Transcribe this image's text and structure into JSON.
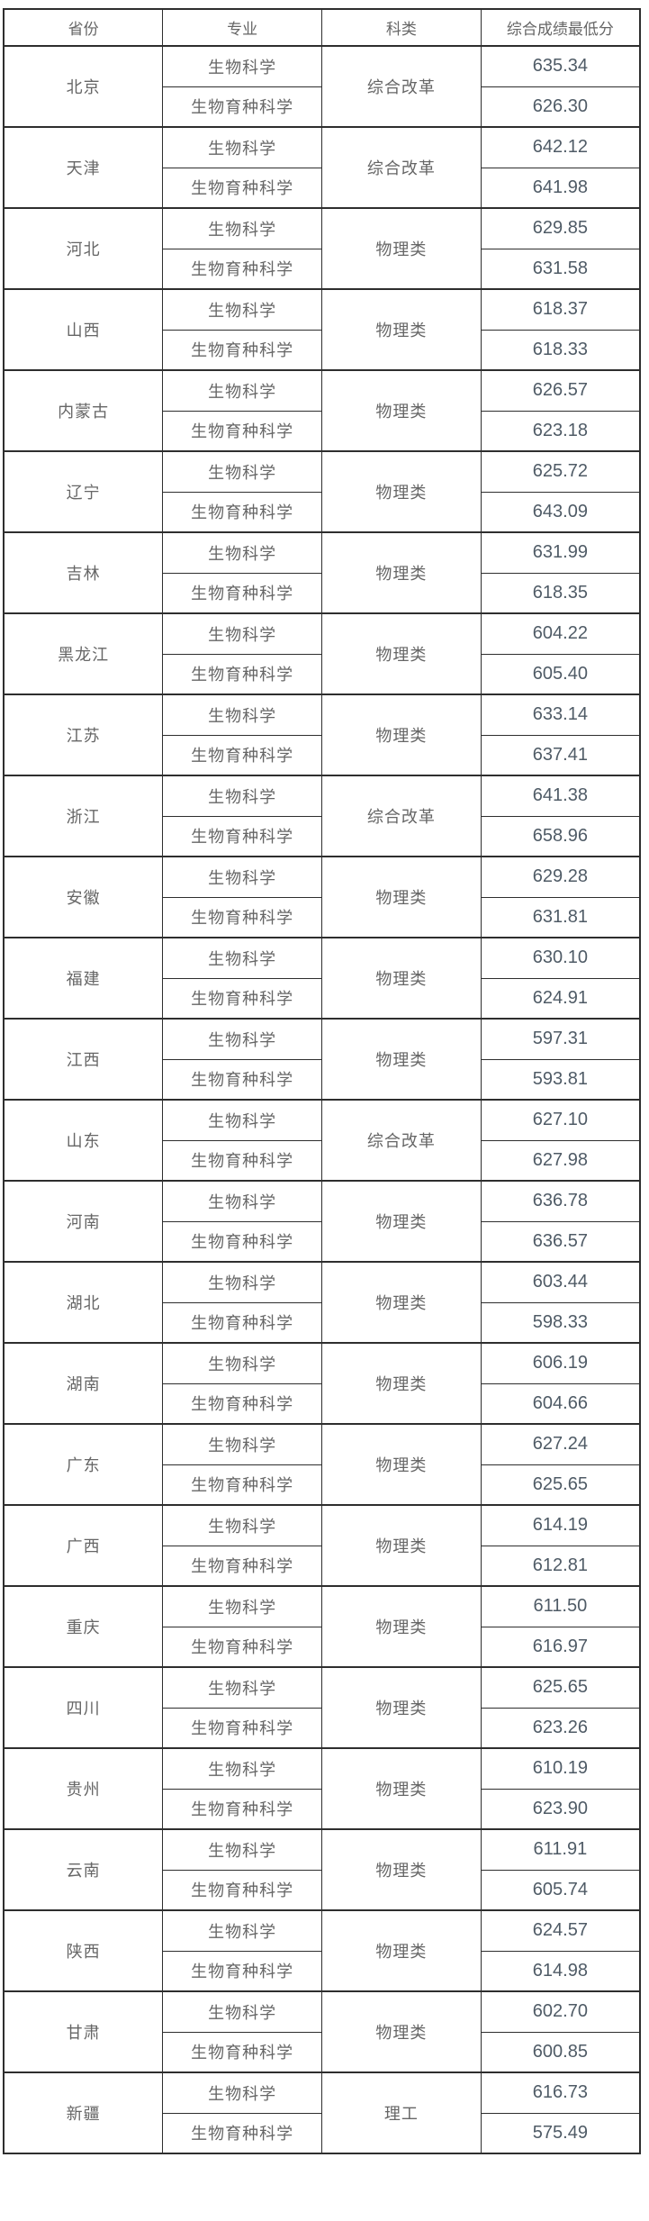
{
  "table": {
    "columns": [
      {
        "label": "省份"
      },
      {
        "label": "专业"
      },
      {
        "label": "科类"
      },
      {
        "label": "综合成绩最低分"
      }
    ],
    "rows": [
      {
        "province": "北京",
        "majors": [
          "生物科学",
          "生物育种科学"
        ],
        "category": "综合改革",
        "scores": [
          "635.34",
          "626.30"
        ]
      },
      {
        "province": "天津",
        "majors": [
          "生物科学",
          "生物育种科学"
        ],
        "category": "综合改革",
        "scores": [
          "642.12",
          "641.98"
        ]
      },
      {
        "province": "河北",
        "majors": [
          "生物科学",
          "生物育种科学"
        ],
        "category": "物理类",
        "scores": [
          "629.85",
          "631.58"
        ]
      },
      {
        "province": "山西",
        "majors": [
          "生物科学",
          "生物育种科学"
        ],
        "category": "物理类",
        "scores": [
          "618.37",
          "618.33"
        ]
      },
      {
        "province": "内蒙古",
        "majors": [
          "生物科学",
          "生物育种科学"
        ],
        "category": "物理类",
        "scores": [
          "626.57",
          "623.18"
        ]
      },
      {
        "province": "辽宁",
        "majors": [
          "生物科学",
          "生物育种科学"
        ],
        "category": "物理类",
        "scores": [
          "625.72",
          "643.09"
        ]
      },
      {
        "province": "吉林",
        "majors": [
          "生物科学",
          "生物育种科学"
        ],
        "category": "物理类",
        "scores": [
          "631.99",
          "618.35"
        ]
      },
      {
        "province": "黑龙江",
        "majors": [
          "生物科学",
          "生物育种科学"
        ],
        "category": "物理类",
        "scores": [
          "604.22",
          "605.40"
        ]
      },
      {
        "province": "江苏",
        "majors": [
          "生物科学",
          "生物育种科学"
        ],
        "category": "物理类",
        "scores": [
          "633.14",
          "637.41"
        ]
      },
      {
        "province": "浙江",
        "majors": [
          "生物科学",
          "生物育种科学"
        ],
        "category": "综合改革",
        "scores": [
          "641.38",
          "658.96"
        ]
      },
      {
        "province": "安徽",
        "majors": [
          "生物科学",
          "生物育种科学"
        ],
        "category": "物理类",
        "scores": [
          "629.28",
          "631.81"
        ]
      },
      {
        "province": "福建",
        "majors": [
          "生物科学",
          "生物育种科学"
        ],
        "category": "物理类",
        "scores": [
          "630.10",
          "624.91"
        ]
      },
      {
        "province": "江西",
        "majors": [
          "生物科学",
          "生物育种科学"
        ],
        "category": "物理类",
        "scores": [
          "597.31",
          "593.81"
        ]
      },
      {
        "province": "山东",
        "majors": [
          "生物科学",
          "生物育种科学"
        ],
        "category": "综合改革",
        "scores": [
          "627.10",
          "627.98"
        ]
      },
      {
        "province": "河南",
        "majors": [
          "生物科学",
          "生物育种科学"
        ],
        "category": "物理类",
        "scores": [
          "636.78",
          "636.57"
        ]
      },
      {
        "province": "湖北",
        "majors": [
          "生物科学",
          "生物育种科学"
        ],
        "category": "物理类",
        "scores": [
          "603.44",
          "598.33"
        ]
      },
      {
        "province": "湖南",
        "majors": [
          "生物科学",
          "生物育种科学"
        ],
        "category": "物理类",
        "scores": [
          "606.19",
          "604.66"
        ]
      },
      {
        "province": "广东",
        "majors": [
          "生物科学",
          "生物育种科学"
        ],
        "category": "物理类",
        "scores": [
          "627.24",
          "625.65"
        ]
      },
      {
        "province": "广西",
        "majors": [
          "生物科学",
          "生物育种科学"
        ],
        "category": "物理类",
        "scores": [
          "614.19",
          "612.81"
        ]
      },
      {
        "province": "重庆",
        "majors": [
          "生物科学",
          "生物育种科学"
        ],
        "category": "物理类",
        "scores": [
          "611.50",
          "616.97"
        ]
      },
      {
        "province": "四川",
        "majors": [
          "生物科学",
          "生物育种科学"
        ],
        "category": "物理类",
        "scores": [
          "625.65",
          "623.26"
        ]
      },
      {
        "province": "贵州",
        "majors": [
          "生物科学",
          "生物育种科学"
        ],
        "category": "物理类",
        "scores": [
          "610.19",
          "623.90"
        ]
      },
      {
        "province": "云南",
        "majors": [
          "生物科学",
          "生物育种科学"
        ],
        "category": "物理类",
        "scores": [
          "611.91",
          "605.74"
        ]
      },
      {
        "province": "陕西",
        "majors": [
          "生物科学",
          "生物育种科学"
        ],
        "category": "物理类",
        "scores": [
          "624.57",
          "614.98"
        ]
      },
      {
        "province": "甘肃",
        "majors": [
          "生物科学",
          "生物育种科学"
        ],
        "category": "物理类",
        "scores": [
          "602.70",
          "600.85"
        ]
      },
      {
        "province": "新疆",
        "majors": [
          "生物科学",
          "生物育种科学"
        ],
        "category": "理工",
        "scores": [
          "616.73",
          "575.49"
        ]
      }
    ]
  },
  "colors": {
    "border": "#2e2e2e",
    "body_text": "#666666",
    "score_text": "#4f5b66",
    "background": "#ffffff"
  }
}
